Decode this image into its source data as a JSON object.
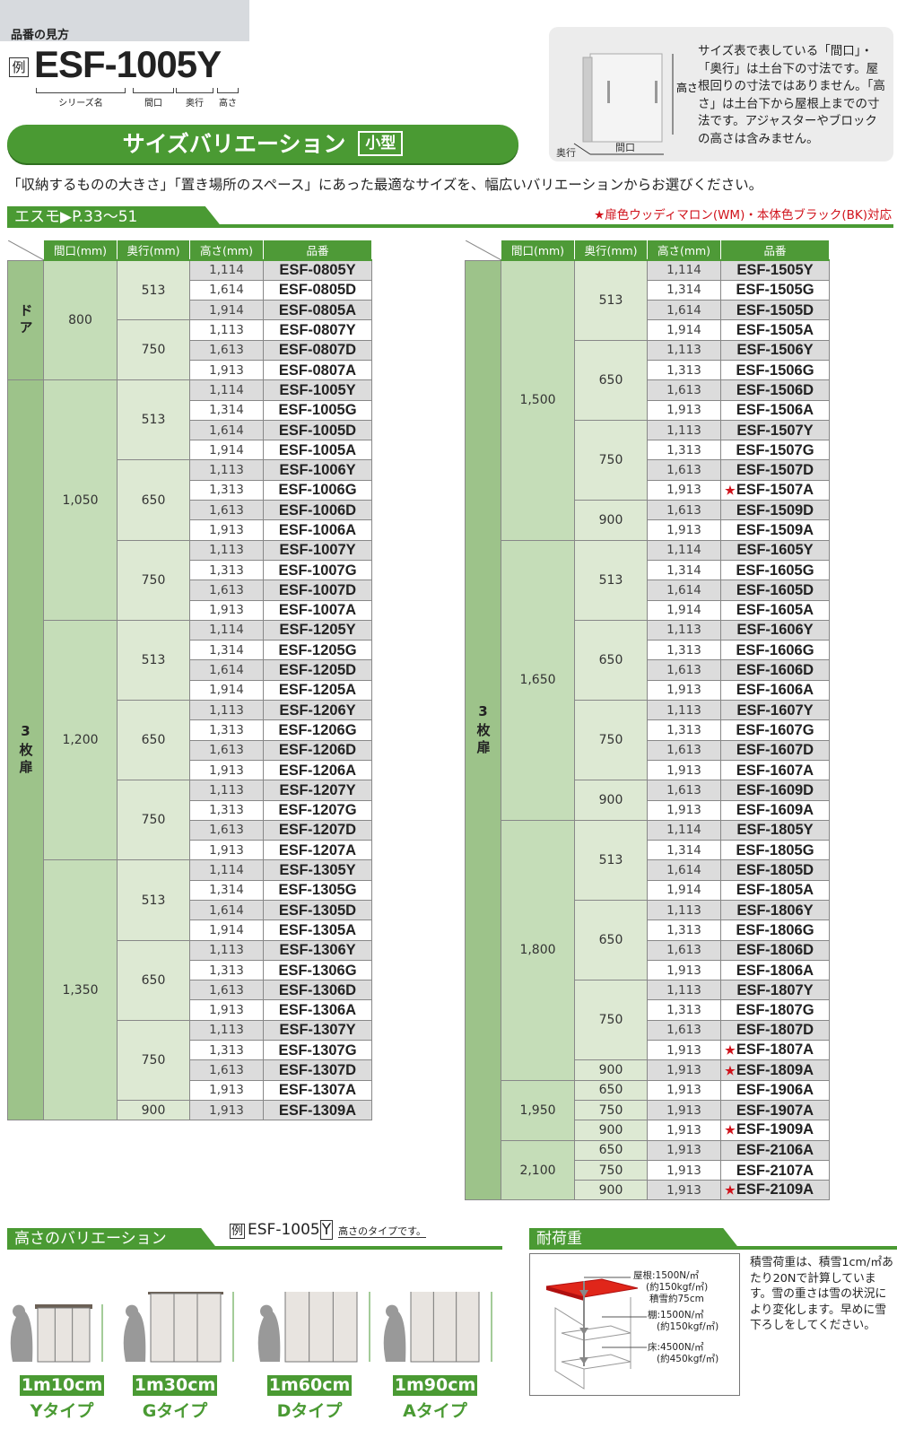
{
  "howto": {
    "title": "品番の見方",
    "example_mark": "例",
    "example_code": "ESF-1005Y",
    "parts": [
      "シリーズ名",
      "間口",
      "奥行",
      "高さ"
    ]
  },
  "banner": {
    "title": "サイズバリエーション",
    "badge": "小型"
  },
  "info": {
    "text": "サイズ表で表している「間口」・「奥行」は土台下の寸法です。屋根回りの寸法ではありません。「高さ」は土台下から屋根上までの寸法です。アジャスターやブロックの高さは含みません。",
    "labels": {
      "height": "高さ",
      "depth": "奥行",
      "width": "間口"
    }
  },
  "intro": "「収納するものの大きさ」「置き場所のスペース」にあった最適なサイズを、幅広いバリエーションからお選びください。",
  "section": {
    "title": "エスモ▶P.33～51",
    "note": "★扉色ウッディマロン(WM)・本体色ブラック(BK)対応"
  },
  "colors": {
    "green": "#4a9a33",
    "red": "#d0121b"
  },
  "table_headers": [
    "間口(mm)",
    "奥行(mm)",
    "高さ(mm)",
    "品番"
  ],
  "tables": [
    {
      "groups": [
        {
          "label": "ドア",
          "widths": [
            {
              "width": "800",
              "depths": [
                {
                  "depth": "513",
                  "items": [
                    [
                      "1,114",
                      "ESF-0805Y"
                    ],
                    [
                      "1,614",
                      "ESF-0805D"
                    ],
                    [
                      "1,914",
                      "ESF-0805A"
                    ]
                  ]
                },
                {
                  "depth": "750",
                  "items": [
                    [
                      "1,113",
                      "ESF-0807Y"
                    ],
                    [
                      "1,613",
                      "ESF-0807D"
                    ],
                    [
                      "1,913",
                      "ESF-0807A"
                    ]
                  ]
                }
              ]
            }
          ]
        },
        {
          "label": "3枚扉",
          "widths": [
            {
              "width": "1,050",
              "depths": [
                {
                  "depth": "513",
                  "items": [
                    [
                      "1,114",
                      "ESF-1005Y"
                    ],
                    [
                      "1,314",
                      "ESF-1005G"
                    ],
                    [
                      "1,614",
                      "ESF-1005D"
                    ],
                    [
                      "1,914",
                      "ESF-1005A"
                    ]
                  ]
                },
                {
                  "depth": "650",
                  "items": [
                    [
                      "1,113",
                      "ESF-1006Y"
                    ],
                    [
                      "1,313",
                      "ESF-1006G"
                    ],
                    [
                      "1,613",
                      "ESF-1006D"
                    ],
                    [
                      "1,913",
                      "ESF-1006A"
                    ]
                  ]
                },
                {
                  "depth": "750",
                  "items": [
                    [
                      "1,113",
                      "ESF-1007Y"
                    ],
                    [
                      "1,313",
                      "ESF-1007G"
                    ],
                    [
                      "1,613",
                      "ESF-1007D"
                    ],
                    [
                      "1,913",
                      "ESF-1007A"
                    ]
                  ]
                }
              ]
            },
            {
              "width": "1,200",
              "depths": [
                {
                  "depth": "513",
                  "items": [
                    [
                      "1,114",
                      "ESF-1205Y"
                    ],
                    [
                      "1,314",
                      "ESF-1205G"
                    ],
                    [
                      "1,614",
                      "ESF-1205D"
                    ],
                    [
                      "1,914",
                      "ESF-1205A"
                    ]
                  ]
                },
                {
                  "depth": "650",
                  "items": [
                    [
                      "1,113",
                      "ESF-1206Y"
                    ],
                    [
                      "1,313",
                      "ESF-1206G"
                    ],
                    [
                      "1,613",
                      "ESF-1206D"
                    ],
                    [
                      "1,913",
                      "ESF-1206A"
                    ]
                  ]
                },
                {
                  "depth": "750",
                  "items": [
                    [
                      "1,113",
                      "ESF-1207Y"
                    ],
                    [
                      "1,313",
                      "ESF-1207G"
                    ],
                    [
                      "1,613",
                      "ESF-1207D"
                    ],
                    [
                      "1,913",
                      "ESF-1207A"
                    ]
                  ]
                }
              ]
            },
            {
              "width": "1,350",
              "depths": [
                {
                  "depth": "513",
                  "items": [
                    [
                      "1,114",
                      "ESF-1305Y"
                    ],
                    [
                      "1,314",
                      "ESF-1305G"
                    ],
                    [
                      "1,614",
                      "ESF-1305D"
                    ],
                    [
                      "1,914",
                      "ESF-1305A"
                    ]
                  ]
                },
                {
                  "depth": "650",
                  "items": [
                    [
                      "1,113",
                      "ESF-1306Y"
                    ],
                    [
                      "1,313",
                      "ESF-1306G"
                    ],
                    [
                      "1,613",
                      "ESF-1306D"
                    ],
                    [
                      "1,913",
                      "ESF-1306A"
                    ]
                  ]
                },
                {
                  "depth": "750",
                  "items": [
                    [
                      "1,113",
                      "ESF-1307Y"
                    ],
                    [
                      "1,313",
                      "ESF-1307G"
                    ],
                    [
                      "1,613",
                      "ESF-1307D"
                    ],
                    [
                      "1,913",
                      "ESF-1307A"
                    ]
                  ]
                },
                {
                  "depth": "900",
                  "items": [
                    [
                      "1,913",
                      "ESF-1309A"
                    ]
                  ]
                }
              ]
            }
          ]
        }
      ]
    },
    {
      "groups": [
        {
          "label": "3枚扉",
          "widths": [
            {
              "width": "1,500",
              "depths": [
                {
                  "depth": "513",
                  "items": [
                    [
                      "1,114",
                      "ESF-1505Y"
                    ],
                    [
                      "1,314",
                      "ESF-1505G"
                    ],
                    [
                      "1,614",
                      "ESF-1505D"
                    ],
                    [
                      "1,914",
                      "ESF-1505A"
                    ]
                  ]
                },
                {
                  "depth": "650",
                  "items": [
                    [
                      "1,113",
                      "ESF-1506Y"
                    ],
                    [
                      "1,313",
                      "ESF-1506G"
                    ],
                    [
                      "1,613",
                      "ESF-1506D"
                    ],
                    [
                      "1,913",
                      "ESF-1506A"
                    ]
                  ]
                },
                {
                  "depth": "750",
                  "items": [
                    [
                      "1,113",
                      "ESF-1507Y"
                    ],
                    [
                      "1,313",
                      "ESF-1507G"
                    ],
                    [
                      "1,613",
                      "ESF-1507D"
                    ],
                    [
                      "1,913",
                      "ESF-1507A",
                      true
                    ]
                  ]
                },
                {
                  "depth": "900",
                  "items": [
                    [
                      "1,613",
                      "ESF-1509D"
                    ],
                    [
                      "1,913",
                      "ESF-1509A"
                    ]
                  ]
                }
              ]
            },
            {
              "width": "1,650",
              "depths": [
                {
                  "depth": "513",
                  "items": [
                    [
                      "1,114",
                      "ESF-1605Y"
                    ],
                    [
                      "1,314",
                      "ESF-1605G"
                    ],
                    [
                      "1,614",
                      "ESF-1605D"
                    ],
                    [
                      "1,914",
                      "ESF-1605A"
                    ]
                  ]
                },
                {
                  "depth": "650",
                  "items": [
                    [
                      "1,113",
                      "ESF-1606Y"
                    ],
                    [
                      "1,313",
                      "ESF-1606G"
                    ],
                    [
                      "1,613",
                      "ESF-1606D"
                    ],
                    [
                      "1,913",
                      "ESF-1606A"
                    ]
                  ]
                },
                {
                  "depth": "750",
                  "items": [
                    [
                      "1,113",
                      "ESF-1607Y"
                    ],
                    [
                      "1,313",
                      "ESF-1607G"
                    ],
                    [
                      "1,613",
                      "ESF-1607D"
                    ],
                    [
                      "1,913",
                      "ESF-1607A"
                    ]
                  ]
                },
                {
                  "depth": "900",
                  "items": [
                    [
                      "1,613",
                      "ESF-1609D"
                    ],
                    [
                      "1,913",
                      "ESF-1609A"
                    ]
                  ]
                }
              ]
            },
            {
              "width": "1,800",
              "depths": [
                {
                  "depth": "513",
                  "items": [
                    [
                      "1,114",
                      "ESF-1805Y"
                    ],
                    [
                      "1,314",
                      "ESF-1805G"
                    ],
                    [
                      "1,614",
                      "ESF-1805D"
                    ],
                    [
                      "1,914",
                      "ESF-1805A"
                    ]
                  ]
                },
                {
                  "depth": "650",
                  "items": [
                    [
                      "1,113",
                      "ESF-1806Y"
                    ],
                    [
                      "1,313",
                      "ESF-1806G"
                    ],
                    [
                      "1,613",
                      "ESF-1806D"
                    ],
                    [
                      "1,913",
                      "ESF-1806A"
                    ]
                  ]
                },
                {
                  "depth": "750",
                  "items": [
                    [
                      "1,113",
                      "ESF-1807Y"
                    ],
                    [
                      "1,313",
                      "ESF-1807G"
                    ],
                    [
                      "1,613",
                      "ESF-1807D"
                    ],
                    [
                      "1,913",
                      "ESF-1807A",
                      true
                    ]
                  ]
                },
                {
                  "depth": "900",
                  "items": [
                    [
                      "1,913",
                      "ESF-1809A",
                      true
                    ]
                  ]
                }
              ]
            },
            {
              "width": "1,950",
              "depths": [
                {
                  "depth": "650",
                  "items": [
                    [
                      "1,913",
                      "ESF-1906A"
                    ]
                  ]
                },
                {
                  "depth": "750",
                  "items": [
                    [
                      "1,913",
                      "ESF-1907A"
                    ]
                  ]
                },
                {
                  "depth": "900",
                  "items": [
                    [
                      "1,913",
                      "ESF-1909A",
                      true
                    ]
                  ]
                }
              ]
            },
            {
              "width": "2,100",
              "depths": [
                {
                  "depth": "650",
                  "items": [
                    [
                      "1,913",
                      "ESF-2106A"
                    ]
                  ]
                },
                {
                  "depth": "750",
                  "items": [
                    [
                      "1,913",
                      "ESF-2107A"
                    ]
                  ]
                },
                {
                  "depth": "900",
                  "items": [
                    [
                      "1,913",
                      "ESF-2109A",
                      true
                    ]
                  ]
                }
              ]
            }
          ]
        }
      ]
    }
  ],
  "star_mark": "★",
  "height_variation": {
    "title": "高さのバリエーション",
    "example_mark": "例",
    "example_code": "ESF-1005",
    "example_suffix": "Y",
    "example_note": "高さのタイプです。",
    "types": [
      {
        "height": "1m10cm",
        "label": "Yタイプ"
      },
      {
        "height": "1m30cm",
        "label": "Gタイプ"
      },
      {
        "height": "1m60cm",
        "label": "Dタイプ"
      },
      {
        "height": "1m90cm",
        "label": "Aタイプ"
      }
    ]
  },
  "load": {
    "title": "耐荷重",
    "roof": [
      "屋根:1500N/㎡",
      "(約150kgf/㎡)",
      "積雪約75cm"
    ],
    "shelf": [
      "棚:1500N/㎡",
      "(約150kgf/㎡)"
    ],
    "floor": [
      "床:4500N/㎡",
      "(約450kgf/㎡)"
    ],
    "note": "積雪荷重は、積雪1cm/㎡あたり20Nで計算しています。雪の重さは雪の状況により変化します。早めに雪下ろしをしてください。"
  }
}
